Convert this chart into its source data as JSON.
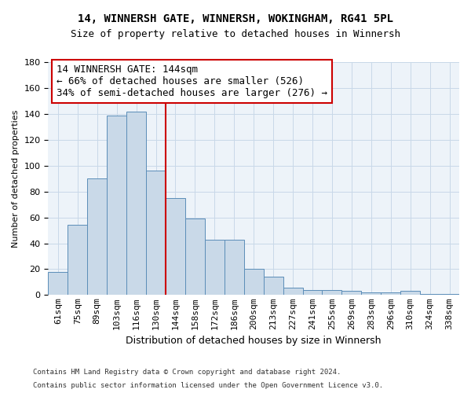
{
  "title1": "14, WINNERSH GATE, WINNERSH, WOKINGHAM, RG41 5PL",
  "title2": "Size of property relative to detached houses in Winnersh",
  "xlabel": "Distribution of detached houses by size in Winnersh",
  "ylabel": "Number of detached properties",
  "categories": [
    "61sqm",
    "75sqm",
    "89sqm",
    "103sqm",
    "116sqm",
    "130sqm",
    "144sqm",
    "158sqm",
    "172sqm",
    "186sqm",
    "200sqm",
    "213sqm",
    "227sqm",
    "241sqm",
    "255sqm",
    "269sqm",
    "283sqm",
    "296sqm",
    "310sqm",
    "324sqm",
    "338sqm"
  ],
  "values": [
    18,
    54,
    90,
    139,
    142,
    96,
    75,
    59,
    43,
    43,
    20,
    14,
    6,
    4,
    4,
    3,
    2,
    2,
    3,
    1,
    1
  ],
  "bar_color": "#c9d9e8",
  "bar_edge_color": "#5b8db8",
  "grid_color": "#c8d8e8",
  "vline_color": "#cc0000",
  "annotation_text": "14 WINNERSH GATE: 144sqm\n← 66% of detached houses are smaller (526)\n34% of semi-detached houses are larger (276) →",
  "annotation_box_color": "#cc0000",
  "ylim": [
    0,
    180
  ],
  "yticks": [
    0,
    20,
    40,
    60,
    80,
    100,
    120,
    140,
    160,
    180
  ],
  "footnote1": "Contains HM Land Registry data © Crown copyright and database right 2024.",
  "footnote2": "Contains public sector information licensed under the Open Government Licence v3.0.",
  "background_color": "#edf3f9",
  "title_fontsize": 10,
  "subtitle_fontsize": 9,
  "annot_fontsize": 9,
  "ylabel_fontsize": 8,
  "xlabel_fontsize": 9,
  "tick_fontsize": 8,
  "footnote_fontsize": 6.5
}
